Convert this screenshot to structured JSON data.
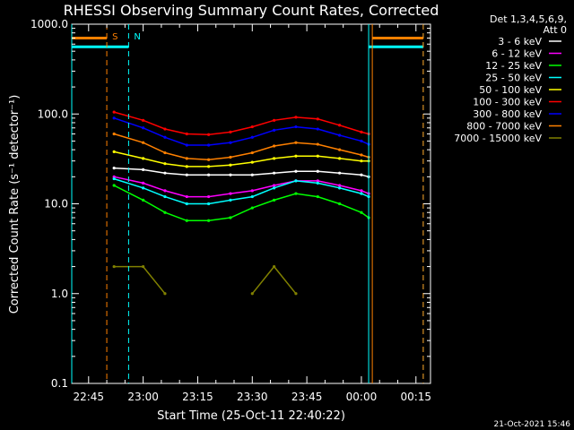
{
  "chart_data": {
    "type": "line",
    "title": "RHESSI Observing Summary Count Rates, Corrected",
    "xlabel": "Start Time (25-Oct-11 22:40:22)",
    "ylabel": "Corrected Count Rate (s⁻¹ detector⁻¹)",
    "yscale": "log",
    "ylim": [
      0.1,
      1000.0
    ],
    "xlim": [
      "22:40:22",
      "00:19:00"
    ],
    "x_ticks": [
      "22:45",
      "23:00",
      "23:15",
      "23:30",
      "23:45",
      "00:00",
      "00:15"
    ],
    "y_ticks": [
      "0.1",
      "1.0",
      "10.0",
      "100.0",
      "1000.0"
    ],
    "legend_header": [
      "Det 1,3,4,5,6,9,",
      "Att 0"
    ],
    "legend_position": "top-right",
    "footer_date": "21-Oct-2021 15:46",
    "markers": [
      {
        "label": "S",
        "time": "22:50",
        "color": "#ff8000"
      },
      {
        "label": "N",
        "time": "22:56",
        "color": "#00ffff"
      }
    ],
    "vertical_lines": [
      {
        "time": "22:40:22",
        "color": "#00ffff",
        "style": "solid"
      },
      {
        "time": "22:50",
        "color": "#ff8000",
        "style": "dashed"
      },
      {
        "time": "22:56",
        "color": "#00ffff",
        "style": "dashed"
      },
      {
        "time": "00:02",
        "color": "#00ffff",
        "style": "solid"
      },
      {
        "time": "00:03",
        "color": "#ff8000",
        "style": "solid"
      },
      {
        "time": "00:17",
        "color": "#00ffff",
        "style": "dashed"
      },
      {
        "time": "00:17",
        "color": "#ff8000",
        "style": "dashed"
      }
    ],
    "x": [
      "22:52",
      "23:00",
      "23:06",
      "23:12",
      "23:18",
      "23:24",
      "23:30",
      "23:36",
      "23:42",
      "23:48",
      "23:54",
      "24:00",
      "24:02"
    ],
    "series": [
      {
        "name": "3 - 6 keV",
        "color": "#ffffff",
        "values": [
          25,
          24,
          22,
          21,
          21,
          21,
          21,
          22,
          23,
          23,
          22,
          21,
          20
        ]
      },
      {
        "name": "6 - 12 keV",
        "color": "#ff00ff",
        "values": [
          20,
          17,
          14,
          12,
          12,
          13,
          14,
          16,
          18,
          18,
          16,
          14,
          13
        ]
      },
      {
        "name": "12 - 25 keV",
        "color": "#00ff00",
        "values": [
          16,
          11,
          8,
          6.5,
          6.5,
          7,
          9,
          11,
          13,
          12,
          10,
          8,
          7
        ]
      },
      {
        "name": "25 - 50 keV",
        "color": "#00ffff",
        "values": [
          19,
          15,
          12,
          10,
          10,
          11,
          12,
          15,
          18,
          17,
          15,
          13,
          12
        ]
      },
      {
        "name": "50 - 100 keV",
        "color": "#ffff00",
        "values": [
          38,
          32,
          28,
          26,
          26,
          27,
          29,
          32,
          34,
          34,
          32,
          30,
          30
        ]
      },
      {
        "name": "100 - 300 keV",
        "color": "#ff0000",
        "values": [
          105,
          85,
          68,
          60,
          59,
          63,
          72,
          85,
          92,
          88,
          75,
          63,
          60
        ]
      },
      {
        "name": "300 - 800 keV",
        "color": "#0000ff",
        "values": [
          90,
          70,
          55,
          45,
          45,
          48,
          55,
          66,
          72,
          68,
          58,
          50,
          46
        ]
      },
      {
        "name": "800 - 7000 keV",
        "color": "#ff8000",
        "values": [
          60,
          48,
          37,
          32,
          31,
          33,
          37,
          44,
          48,
          46,
          40,
          35,
          33
        ]
      },
      {
        "name": "7000 - 15000 keV",
        "color": "#808000",
        "values": [
          2,
          2,
          1,
          null,
          null,
          null,
          1,
          2,
          1,
          null,
          null,
          null,
          null
        ]
      }
    ]
  }
}
